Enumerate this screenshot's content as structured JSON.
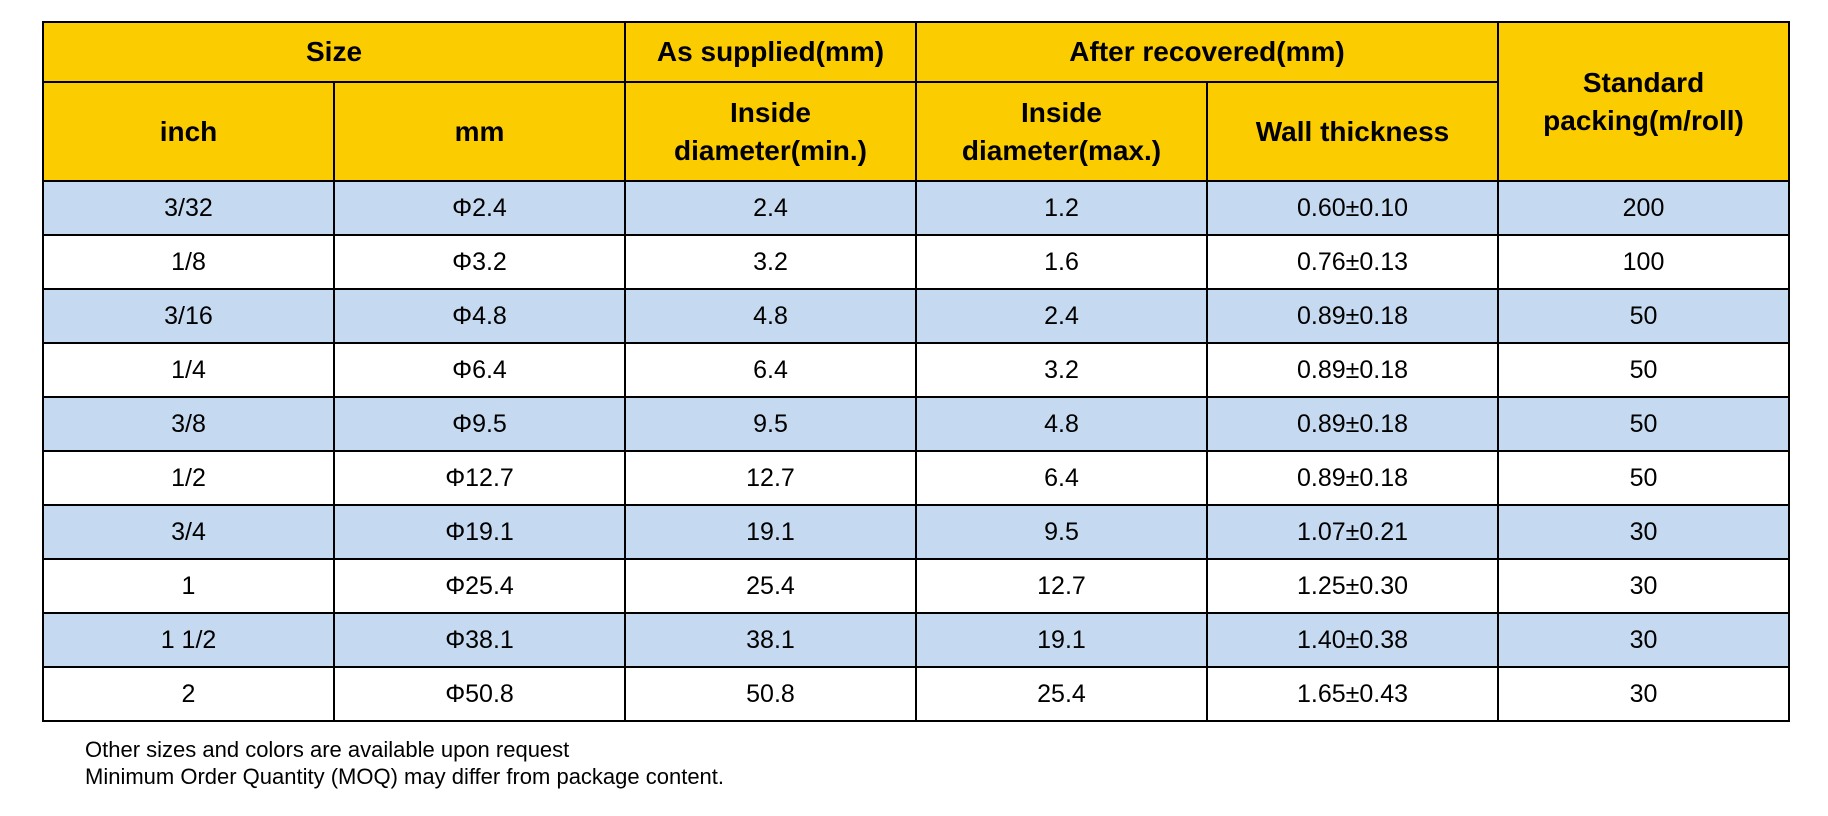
{
  "table": {
    "header": {
      "size": "Size",
      "as_supplied": "As supplied(mm)",
      "after_recovered": "After recovered(mm)",
      "standard_packing": "Standard packing(m/roll)",
      "inch": "inch",
      "mm": "mm",
      "inside_diameter_min": "Inside diameter(min.)",
      "inside_diameter_max": "Inside diameter(max.)",
      "wall_thickness": "Wall thickness"
    },
    "rows": [
      {
        "inch": "3/32",
        "mm": "Φ2.4",
        "id_min": "2.4",
        "id_max": "1.2",
        "wall": "0.60±0.10",
        "packing": "200"
      },
      {
        "inch": "1/8",
        "mm": "Φ3.2",
        "id_min": "3.2",
        "id_max": "1.6",
        "wall": "0.76±0.13",
        "packing": "100"
      },
      {
        "inch": "3/16",
        "mm": "Φ4.8",
        "id_min": "4.8",
        "id_max": "2.4",
        "wall": "0.89±0.18",
        "packing": "50"
      },
      {
        "inch": "1/4",
        "mm": "Φ6.4",
        "id_min": "6.4",
        "id_max": "3.2",
        "wall": "0.89±0.18",
        "packing": "50"
      },
      {
        "inch": "3/8",
        "mm": "Φ9.5",
        "id_min": "9.5",
        "id_max": "4.8",
        "wall": "0.89±0.18",
        "packing": "50"
      },
      {
        "inch": "1/2",
        "mm": "Φ12.7",
        "id_min": "12.7",
        "id_max": "6.4",
        "wall": "0.89±0.18",
        "packing": "50"
      },
      {
        "inch": "3/4",
        "mm": "Φ19.1",
        "id_min": "19.1",
        "id_max": "9.5",
        "wall": "1.07±0.21",
        "packing": "30"
      },
      {
        "inch": "1",
        "mm": "Φ25.4",
        "id_min": "25.4",
        "id_max": "12.7",
        "wall": "1.25±0.30",
        "packing": "30"
      },
      {
        "inch": "1 1/2",
        "mm": "Φ38.1",
        "id_min": "38.1",
        "id_max": "19.1",
        "wall": "1.40±0.38",
        "packing": "30"
      },
      {
        "inch": "2",
        "mm": "Φ50.8",
        "id_min": "50.8",
        "id_max": "25.4",
        "wall": "1.65±0.43",
        "packing": "30"
      }
    ]
  },
  "footnotes": [
    "Other sizes and colors are available upon request",
    "Minimum Order Quantity (MOQ) may differ from package content."
  ],
  "colors": {
    "header_bg": "#fbcd00",
    "stripe_bg": "#c5d9f0",
    "border": "#000000"
  }
}
